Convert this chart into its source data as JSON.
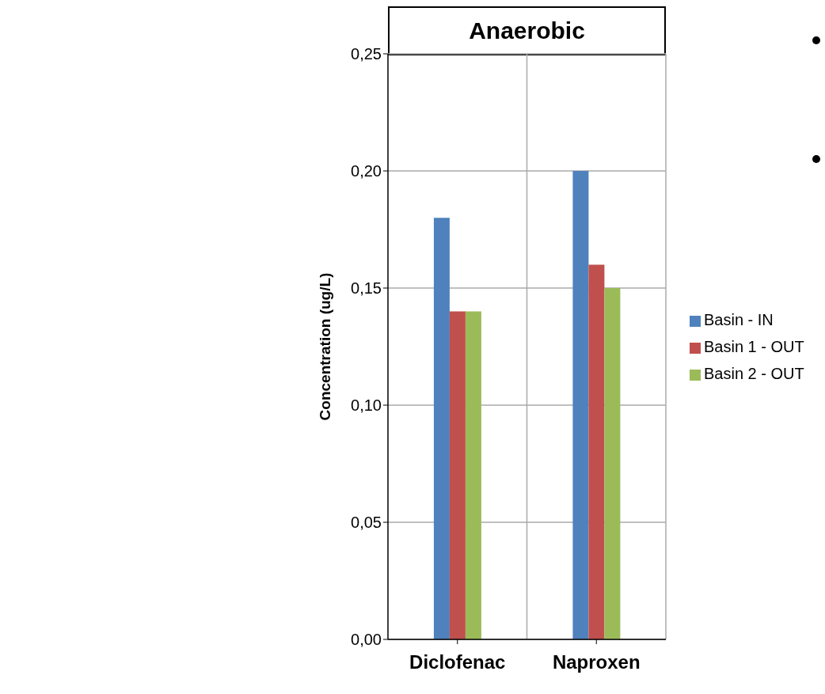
{
  "chart_data": {
    "type": "bar",
    "title": "Anaerobic",
    "ylabel": "Concentration (ug/L)",
    "categories": [
      "Diclofenac",
      "Naproxen"
    ],
    "series": [
      {
        "name": "Basin - IN",
        "color": "#4f81bd",
        "values": [
          0.18,
          0.2
        ]
      },
      {
        "name": "Basin 1 - OUT",
        "color": "#c0504d",
        "values": [
          0.14,
          0.16
        ]
      },
      {
        "name": "Basin 2 - OUT",
        "color": "#9bbb59",
        "values": [
          0.14,
          0.15
        ]
      }
    ],
    "ylim": [
      0,
      0.25
    ],
    "yticks": [
      {
        "value": 0,
        "label": "0,00"
      },
      {
        "value": 0.05,
        "label": "0,05"
      },
      {
        "value": 0.1,
        "label": "0,10"
      },
      {
        "value": 0.15,
        "label": "0,15"
      },
      {
        "value": 0.2,
        "label": "0,20"
      },
      {
        "value": 0.25,
        "label": "0,25"
      }
    ],
    "grid": true,
    "legend": "right"
  }
}
